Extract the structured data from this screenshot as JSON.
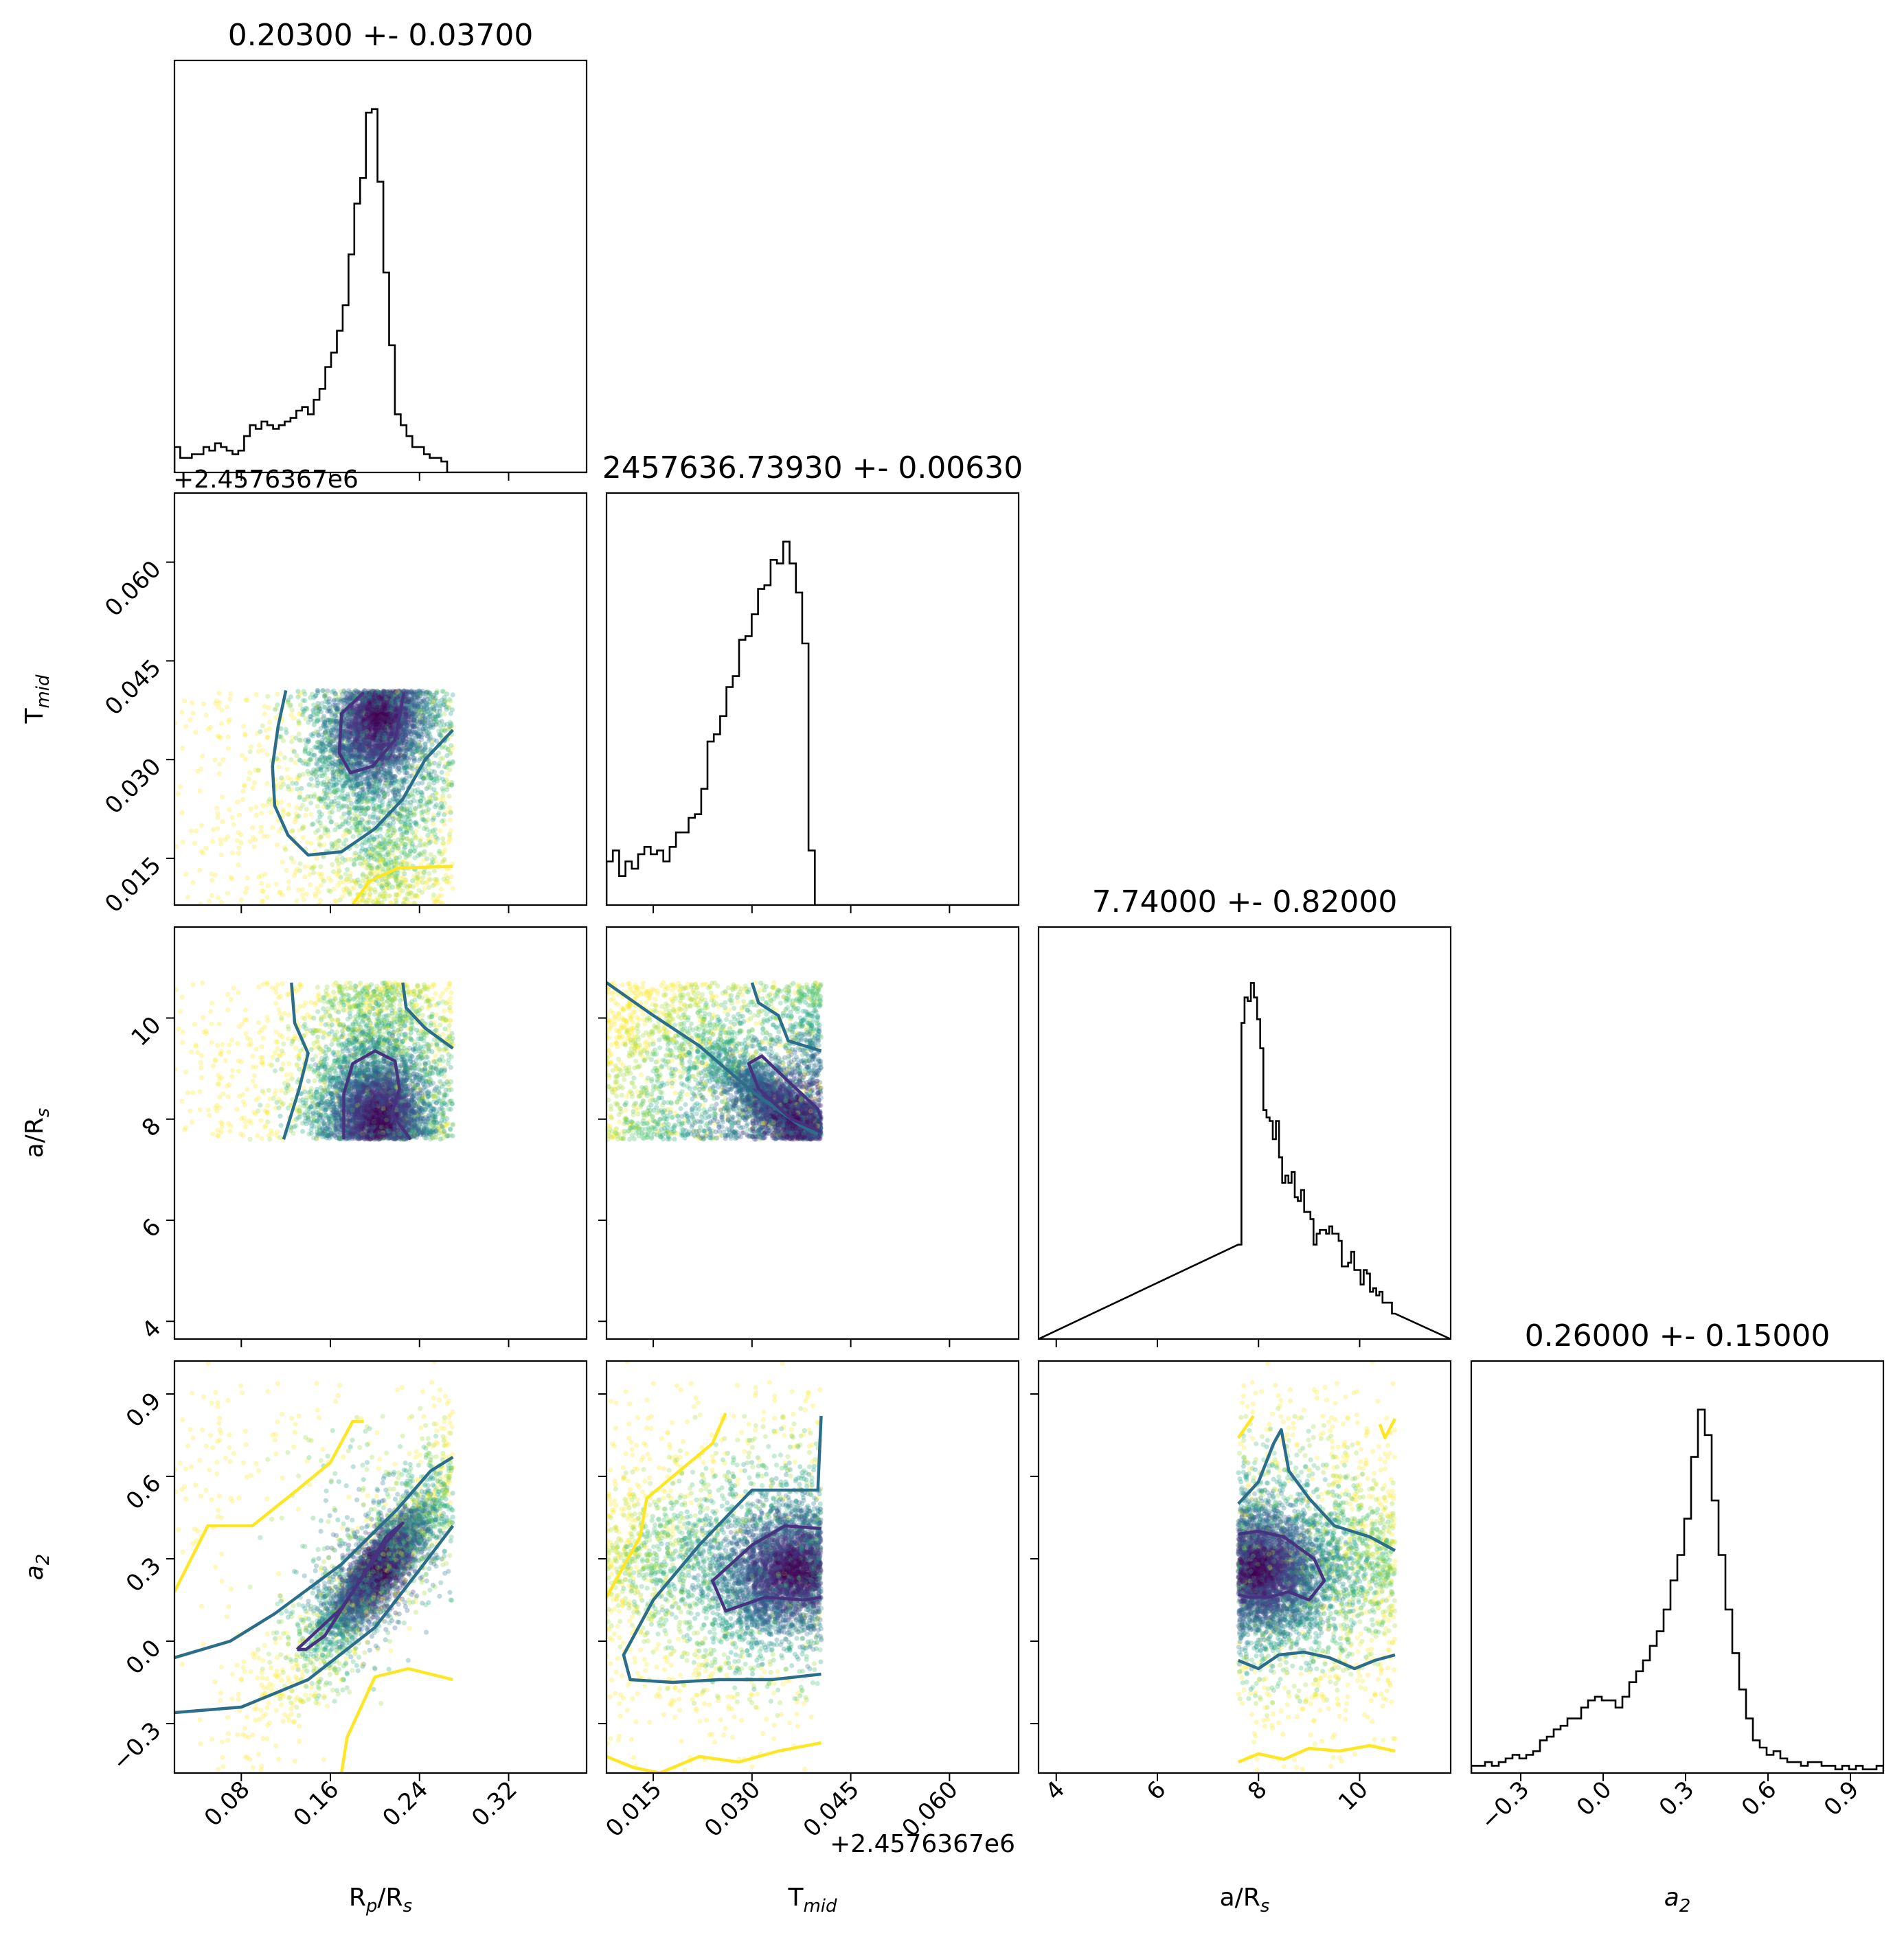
{
  "chart_data": {
    "type": "corner",
    "parameters": [
      "R_p/R_s",
      "T_mid",
      "a/R_s",
      "a_2"
    ],
    "titles": [
      "0.20300 +- 0.03700",
      "2457636.73930 +- 0.00630",
      "7.74000 +- 0.82000",
      "0.26000 +- 0.15000"
    ],
    "axis_labels": [
      {
        "base": "R",
        "sub": "p",
        "tail": "/R",
        "sub2": "s"
      },
      {
        "base": "T",
        "sub": "mid",
        "tail": "",
        "sub2": ""
      },
      {
        "base": "a/R",
        "sub": "s",
        "tail": "",
        "sub2": ""
      },
      {
        "base": "a",
        "sub": "2",
        "tail": "",
        "sub2": "",
        "italic": true
      }
    ],
    "offset_text": "+2.4576367e6",
    "ranges": [
      [
        0.02,
        0.39
      ],
      [
        0.0079,
        0.0705
      ],
      [
        3.65,
        11.8
      ],
      [
        -0.48,
        1.02
      ]
    ],
    "ticks": [
      [
        0.08,
        0.16,
        0.24,
        0.32
      ],
      [
        0.015,
        0.03,
        0.045,
        0.06
      ],
      [
        4,
        6,
        8,
        10
      ],
      [
        -0.3,
        0.0,
        0.3,
        0.6,
        0.9
      ]
    ],
    "tick_labels": [
      [
        "0.08",
        "0.16",
        "0.24",
        "0.32"
      ],
      [
        "0.015",
        "0.030",
        "0.045",
        "0.060"
      ],
      [
        "4",
        "6",
        "8",
        "10"
      ],
      [
        "−0.3",
        "0.0",
        "0.3",
        "0.6",
        "0.9"
      ]
    ],
    "histograms": [
      {
        "bins": [
          0.02,
          0.27
        ],
        "counts": [
          0.07,
          0.04,
          0.04,
          0.05,
          0.05,
          0.07,
          0.06,
          0.08,
          0.07,
          0.06,
          0.05,
          0.06,
          0.1,
          0.13,
          0.12,
          0.14,
          0.13,
          0.12,
          0.13,
          0.14,
          0.15,
          0.17,
          0.18,
          0.16,
          0.2,
          0.23,
          0.29,
          0.33,
          0.39,
          0.46,
          0.6,
          0.74,
          0.81,
          0.99,
          1.0,
          0.8,
          0.55,
          0.35,
          0.16,
          0.13,
          0.1,
          0.07,
          0.07,
          0.05,
          0.04,
          0.04,
          0.03,
          0.0
        ]
      },
      {
        "bins": [
          0.0079,
          0.0405
        ],
        "counts": [
          0.12,
          0.15,
          0.08,
          0.12,
          0.1,
          0.14,
          0.16,
          0.14,
          0.15,
          0.12,
          0.16,
          0.2,
          0.2,
          0.24,
          0.25,
          0.32,
          0.45,
          0.47,
          0.52,
          0.6,
          0.63,
          0.73,
          0.74,
          0.8,
          0.87,
          0.88,
          0.95,
          0.94,
          1.0,
          0.94,
          0.86,
          0.72,
          0.15,
          0.0
        ]
      },
      {
        "bins": [
          7.6,
          10.7
        ],
        "counts": [
          0.26,
          0.87,
          0.94,
          0.93,
          0.98,
          0.94,
          0.88,
          0.8,
          0.63,
          0.61,
          0.6,
          0.55,
          0.6,
          0.5,
          0.43,
          0.45,
          0.43,
          0.46,
          0.39,
          0.38,
          0.41,
          0.35,
          0.35,
          0.33,
          0.26,
          0.29,
          0.3,
          0.3,
          0.29,
          0.31,
          0.29,
          0.29,
          0.27,
          0.2,
          0.2,
          0.21,
          0.24,
          0.19,
          0.19,
          0.15,
          0.19,
          0.18,
          0.13,
          0.14,
          0.12,
          0.13,
          0.1,
          0.1,
          0.1,
          0.07
        ]
      },
      {
        "bins": [
          -0.48,
          1.02
        ],
        "counts": [
          0.02,
          0.02,
          0.03,
          0.02,
          0.03,
          0.04,
          0.05,
          0.04,
          0.05,
          0.06,
          0.09,
          0.1,
          0.12,
          0.13,
          0.15,
          0.15,
          0.18,
          0.2,
          0.21,
          0.2,
          0.2,
          0.18,
          0.21,
          0.25,
          0.28,
          0.31,
          0.35,
          0.39,
          0.45,
          0.53,
          0.6,
          0.7,
          0.87,
          1.0,
          0.93,
          0.75,
          0.6,
          0.45,
          0.33,
          0.23,
          0.15,
          0.09,
          0.07,
          0.05,
          0.06,
          0.04,
          0.03,
          0.03,
          0.02,
          0.03,
          0.03,
          0.02,
          0.02,
          0.01,
          0.02,
          0.01,
          0.02,
          0.01,
          0.01,
          0.02
        ]
      }
    ],
    "samples": {
      "n_points": 5200,
      "center": [
        0.203,
        0.0365,
        8.0,
        0.26
      ],
      "sigma": [
        0.022,
        0.0052,
        0.55,
        0.11
      ],
      "correlations": {
        "0-1": 0.35,
        "0-2": -0.1,
        "0-3": 0.85,
        "1-2": -0.85,
        "1-3": 0.3,
        "2-3": -0.15
      },
      "bounds": [
        [
          0.02,
          0.27
        ],
        [
          0.0079,
          0.0405
        ],
        [
          7.6,
          10.7
        ],
        [
          -0.48,
          1.02
        ]
      ],
      "colors": [
        "#440154",
        "#46327e",
        "#365c8d",
        "#277f8e",
        "#1fa187",
        "#4ac16d",
        "#a0da39",
        "#fde725"
      ]
    },
    "contours": [
      {
        "panel": [
          1,
          0
        ],
        "color": "#2c6e8a",
        "path": [
          [
            0.12,
            0.0405
          ],
          [
            0.113,
            0.035
          ],
          [
            0.108,
            0.029
          ],
          [
            0.11,
            0.023
          ],
          [
            0.122,
            0.0185
          ],
          [
            0.14,
            0.0155
          ],
          [
            0.17,
            0.016
          ],
          [
            0.2,
            0.0195
          ],
          [
            0.225,
            0.024
          ],
          [
            0.245,
            0.03
          ],
          [
            0.27,
            0.0345
          ]
        ]
      },
      {
        "panel": [
          1,
          0
        ],
        "color": "#46327e",
        "path": [
          [
            0.19,
            0.0402
          ],
          [
            0.17,
            0.037
          ],
          [
            0.168,
            0.031
          ],
          [
            0.178,
            0.028
          ],
          [
            0.198,
            0.029
          ],
          [
            0.218,
            0.033
          ],
          [
            0.226,
            0.0402
          ]
        ]
      },
      {
        "panel": [
          1,
          0
        ],
        "color": "#fde725",
        "path": [
          [
            0.18,
            0.008
          ],
          [
            0.195,
            0.0115
          ],
          [
            0.22,
            0.0135
          ],
          [
            0.27,
            0.0138
          ]
        ]
      },
      {
        "panel": [
          2,
          0
        ],
        "color": "#2c6e8a",
        "path": [
          [
            0.125,
            10.7
          ],
          [
            0.128,
            9.9
          ],
          [
            0.14,
            9.3
          ],
          [
            0.132,
            8.6
          ],
          [
            0.118,
            7.6
          ]
        ]
      },
      {
        "panel": [
          2,
          0
        ],
        "color": "#2c6e8a",
        "path": [
          [
            0.225,
            10.7
          ],
          [
            0.228,
            10.2
          ],
          [
            0.245,
            9.8
          ],
          [
            0.27,
            9.4
          ]
        ]
      },
      {
        "panel": [
          2,
          0
        ],
        "color": "#46327e",
        "path": [
          [
            0.172,
            7.6
          ],
          [
            0.172,
            8.5
          ],
          [
            0.18,
            9.1
          ],
          [
            0.2,
            9.35
          ],
          [
            0.218,
            9.15
          ],
          [
            0.222,
            8.6
          ],
          [
            0.215,
            8.1
          ],
          [
            0.232,
            7.6
          ]
        ]
      },
      {
        "panel": [
          2,
          1
        ],
        "color": "#2c6e8a",
        "path": [
          [
            0.0079,
            10.7
          ],
          [
            0.015,
            10.05
          ],
          [
            0.022,
            9.45
          ],
          [
            0.03,
            8.55
          ],
          [
            0.037,
            7.9
          ],
          [
            0.04,
            7.7
          ]
        ]
      },
      {
        "panel": [
          2,
          1
        ],
        "color": "#2c6e8a",
        "path": [
          [
            0.03,
            10.7
          ],
          [
            0.031,
            10.3
          ],
          [
            0.034,
            10.05
          ],
          [
            0.0355,
            9.55
          ],
          [
            0.0405,
            9.35
          ]
        ]
      },
      {
        "panel": [
          2,
          1
        ],
        "color": "#46327e",
        "path": [
          [
            0.0405,
            7.75
          ],
          [
            0.036,
            8.0
          ],
          [
            0.031,
            8.6
          ],
          [
            0.0295,
            9.1
          ],
          [
            0.0315,
            9.25
          ],
          [
            0.0355,
            8.75
          ],
          [
            0.04,
            8.2
          ],
          [
            0.0405,
            8.0
          ]
        ]
      },
      {
        "panel": [
          3,
          0
        ],
        "color": "#2c6e8a",
        "path": [
          [
            0.02,
            -0.06
          ],
          [
            0.07,
            0.0
          ],
          [
            0.11,
            0.1
          ],
          [
            0.17,
            0.28
          ],
          [
            0.22,
            0.48
          ],
          [
            0.25,
            0.62
          ],
          [
            0.27,
            0.67
          ]
        ]
      },
      {
        "panel": [
          3,
          0
        ],
        "color": "#2c6e8a",
        "path": [
          [
            0.02,
            -0.26
          ],
          [
            0.08,
            -0.24
          ],
          [
            0.14,
            -0.14
          ],
          [
            0.2,
            0.05
          ],
          [
            0.24,
            0.26
          ],
          [
            0.27,
            0.42
          ]
        ]
      },
      {
        "panel": [
          3,
          0
        ],
        "color": "#46327e",
        "path": [
          [
            0.13,
            -0.03
          ],
          [
            0.17,
            0.12
          ],
          [
            0.21,
            0.36
          ],
          [
            0.225,
            0.43
          ],
          [
            0.21,
            0.38
          ],
          [
            0.18,
            0.18
          ],
          [
            0.155,
            0.02
          ],
          [
            0.138,
            -0.03
          ],
          [
            0.13,
            -0.03
          ]
        ]
      },
      {
        "panel": [
          3,
          0
        ],
        "color": "#fde725",
        "path": [
          [
            0.02,
            0.18
          ],
          [
            0.05,
            0.42
          ],
          [
            0.09,
            0.42
          ],
          [
            0.13,
            0.55
          ],
          [
            0.16,
            0.65
          ],
          [
            0.18,
            0.8
          ],
          [
            0.19,
            0.8
          ]
        ]
      },
      {
        "panel": [
          3,
          0
        ],
        "color": "#fde725",
        "path": [
          [
            0.17,
            -0.48
          ],
          [
            0.175,
            -0.35
          ],
          [
            0.2,
            -0.13
          ],
          [
            0.23,
            -0.1
          ],
          [
            0.25,
            -0.12
          ],
          [
            0.27,
            -0.14
          ]
        ]
      },
      {
        "panel": [
          3,
          1
        ],
        "color": "#2c6e8a",
        "path": [
          [
            0.0405,
            0.82
          ],
          [
            0.04,
            0.55
          ],
          [
            0.03,
            0.55
          ],
          [
            0.022,
            0.35
          ],
          [
            0.015,
            0.15
          ],
          [
            0.0105,
            -0.05
          ],
          [
            0.0115,
            -0.14
          ],
          [
            0.018,
            -0.15
          ],
          [
            0.025,
            -0.14
          ],
          [
            0.033,
            -0.14
          ],
          [
            0.0405,
            -0.12
          ]
        ]
      },
      {
        "panel": [
          3,
          1
        ],
        "color": "#46327e",
        "path": [
          [
            0.0405,
            0.41
          ],
          [
            0.035,
            0.42
          ],
          [
            0.03,
            0.35
          ],
          [
            0.024,
            0.22
          ],
          [
            0.026,
            0.11
          ],
          [
            0.032,
            0.16
          ],
          [
            0.038,
            0.15
          ],
          [
            0.0405,
            0.16
          ]
        ]
      },
      {
        "panel": [
          3,
          1
        ],
        "color": "#fde725",
        "path": [
          [
            0.0079,
            0.16
          ],
          [
            0.013,
            0.38
          ],
          [
            0.014,
            0.52
          ],
          [
            0.018,
            0.6
          ],
          [
            0.024,
            0.72
          ],
          [
            0.026,
            0.83
          ]
        ]
      },
      {
        "panel": [
          3,
          1
        ],
        "color": "#fde725",
        "path": [
          [
            0.0079,
            -0.42
          ],
          [
            0.012,
            -0.46
          ],
          [
            0.016,
            -0.48
          ],
          [
            0.022,
            -0.42
          ],
          [
            0.028,
            -0.44
          ],
          [
            0.034,
            -0.4
          ],
          [
            0.0405,
            -0.37
          ]
        ]
      },
      {
        "panel": [
          3,
          2
        ],
        "color": "#2c6e8a",
        "path": [
          [
            7.6,
            0.5
          ],
          [
            8.0,
            0.58
          ],
          [
            8.3,
            0.72
          ],
          [
            8.45,
            0.77
          ],
          [
            8.6,
            0.62
          ],
          [
            9.0,
            0.52
          ],
          [
            9.5,
            0.42
          ],
          [
            10.2,
            0.38
          ],
          [
            10.7,
            0.33
          ]
        ]
      },
      {
        "panel": [
          3,
          2
        ],
        "color": "#2c6e8a",
        "path": [
          [
            7.6,
            -0.07
          ],
          [
            8.0,
            -0.1
          ],
          [
            8.4,
            -0.05
          ],
          [
            8.9,
            -0.04
          ],
          [
            9.4,
            -0.06
          ],
          [
            9.9,
            -0.1
          ],
          [
            10.3,
            -0.07
          ],
          [
            10.7,
            -0.05
          ]
        ]
      },
      {
        "panel": [
          3,
          2
        ],
        "color": "#46327e",
        "path": [
          [
            7.6,
            0.39
          ],
          [
            8.0,
            0.4
          ],
          [
            8.5,
            0.38
          ],
          [
            9.1,
            0.3
          ],
          [
            9.3,
            0.22
          ],
          [
            9.0,
            0.15
          ],
          [
            8.6,
            0.18
          ],
          [
            8.2,
            0.16
          ],
          [
            7.8,
            0.16
          ],
          [
            7.6,
            0.17
          ]
        ]
      },
      {
        "panel": [
          3,
          2
        ],
        "color": "#fde725",
        "path": [
          [
            7.6,
            0.74
          ],
          [
            7.9,
            0.82
          ]
        ]
      },
      {
        "panel": [
          3,
          2
        ],
        "color": "#fde725",
        "path": [
          [
            10.4,
            0.79
          ],
          [
            10.5,
            0.74
          ],
          [
            10.7,
            0.81
          ]
        ]
      },
      {
        "panel": [
          3,
          2
        ],
        "color": "#fde725",
        "path": [
          [
            7.6,
            -0.44
          ],
          [
            8.0,
            -0.41
          ],
          [
            8.5,
            -0.43
          ],
          [
            9.0,
            -0.39
          ],
          [
            9.6,
            -0.4
          ],
          [
            10.2,
            -0.38
          ],
          [
            10.7,
            -0.4
          ]
        ]
      }
    ]
  }
}
